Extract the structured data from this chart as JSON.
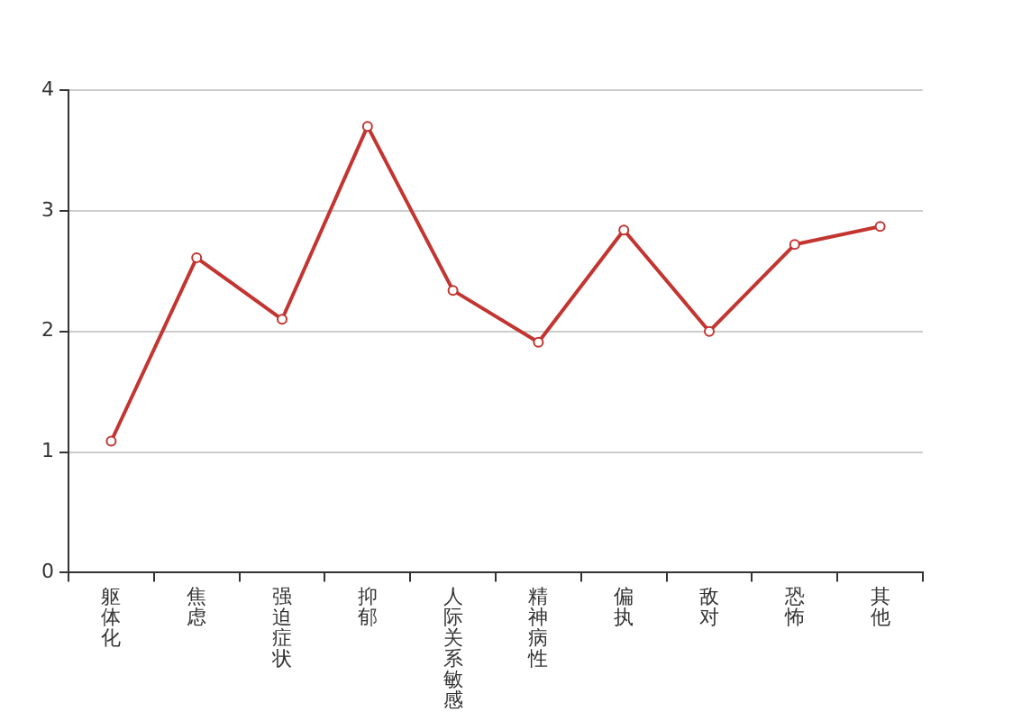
{
  "chart_data": {
    "type": "line",
    "categories": [
      "躯体化",
      "焦虑",
      "强迫症状",
      "抑郁",
      "人际关系敏感",
      "精神病性",
      "偏执",
      "敌对",
      "恐怖",
      "其他"
    ],
    "series": [
      {
        "color": "#c23531",
        "values": [
          1.09,
          2.61,
          2.1,
          3.7,
          2.34,
          1.91,
          2.84,
          2.0,
          2.72,
          2.87
        ]
      }
    ],
    "ylim": [
      0,
      4
    ],
    "yticks": [
      0,
      1,
      2,
      3,
      4
    ],
    "grid": "y",
    "legend": false,
    "marker": "circle",
    "line_style": "solid"
  }
}
